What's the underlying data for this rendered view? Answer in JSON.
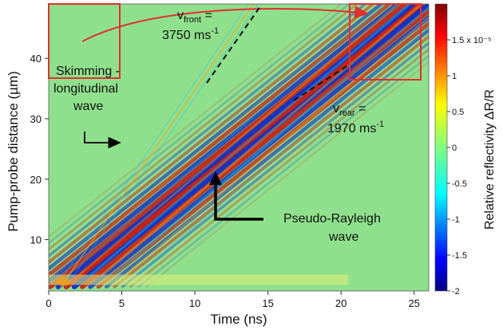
{
  "chart_data": {
    "type": "heatmap",
    "title": "",
    "xlabel": "Time (ns)",
    "ylabel": "Pump-probe distance (µm)",
    "xlim": [
      0,
      26
    ],
    "ylim": [
      1.5,
      49
    ],
    "xticks": [
      0,
      5,
      10,
      15,
      20,
      25
    ],
    "yticks": [
      10,
      20,
      30,
      40
    ],
    "colorbar": {
      "label": "Relative reflectivity ΔR/R",
      "range": [
        -2,
        2
      ],
      "ticks": [
        -2,
        -1.5,
        -1,
        -0.5,
        0,
        0.5,
        1,
        1.5
      ],
      "tick_labels": [
        "-2",
        "-1.5",
        "-1",
        "-0.5",
        "0",
        "0.5",
        "1",
        "1.5 x 10⁻⁵"
      ],
      "colormap": "jet"
    },
    "series": [
      {
        "name": "Skimming-longitudinal wave",
        "velocity_ms": 3750,
        "x": [
          0.8,
          14.0
        ],
        "y": [
          2.0,
          49.0
        ]
      },
      {
        "name": "Pseudo-Rayleigh wave",
        "velocity_ms": 1970,
        "x": [
          1.2,
          25.5
        ],
        "y": [
          2.2,
          49.0
        ]
      }
    ],
    "annotations": {
      "v_front": {
        "prefix": "v",
        "sub": "front",
        "eq": " =",
        "value": "3750 ms",
        "sup": "-1"
      },
      "v_rear": {
        "prefix": "v",
        "sub": "rear",
        "eq": " =",
        "value": "1970 ms",
        "sup": "-1"
      },
      "skimming": [
        "Skimming -",
        "longitudinal",
        "wave"
      ],
      "rayleigh": [
        "Pseudo-Rayleigh",
        "wave"
      ]
    },
    "colors": {
      "highlight_box": "#e03030",
      "arrow_red": "#e03030",
      "arrow_black": "#000000"
    }
  }
}
